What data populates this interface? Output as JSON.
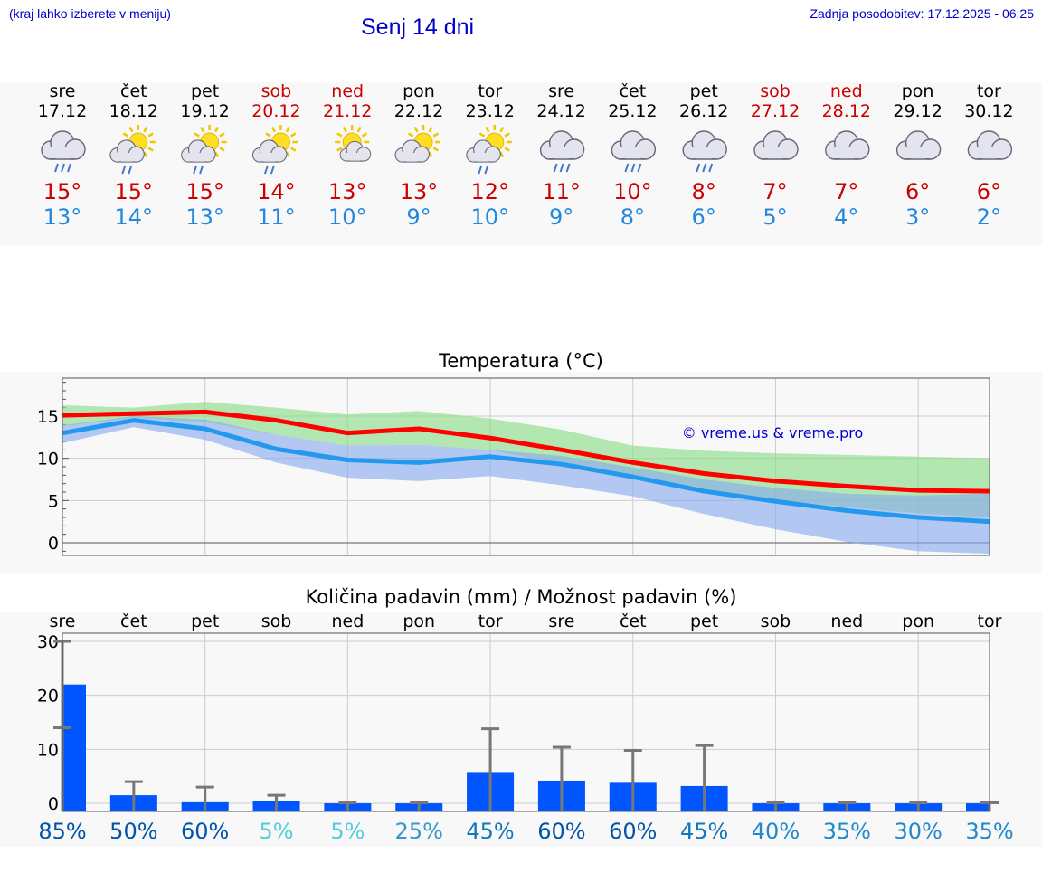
{
  "header": {
    "menu_hint": "(kraj lahko izberete v meniju)",
    "title": "Senj 14 dni",
    "updated": "Zadnja posodobitev: 17.12.2025 - 06:25"
  },
  "colors": {
    "weekday": "#000000",
    "weekend": "#cc0000",
    "tmax": "#cc0000",
    "tmin": "#2288dd",
    "title_blue": "#0000cc"
  },
  "days": [
    {
      "name": "sre",
      "date": "17.12",
      "weekend": false,
      "icon": "cloud-rain-icon",
      "tmax": "15°",
      "tmin": "13°"
    },
    {
      "name": "čet",
      "date": "18.12",
      "weekend": false,
      "icon": "sun-cloud-rain-icon",
      "tmax": "15°",
      "tmin": "14°"
    },
    {
      "name": "pet",
      "date": "19.12",
      "weekend": false,
      "icon": "sun-cloud-rain-icon",
      "tmax": "15°",
      "tmin": "13°"
    },
    {
      "name": "sob",
      "date": "20.12",
      "weekend": true,
      "icon": "sun-cloud-rain-icon",
      "tmax": "14°",
      "tmin": "11°"
    },
    {
      "name": "ned",
      "date": "21.12",
      "weekend": true,
      "icon": "sun-small-cloud-icon",
      "tmax": "13°",
      "tmin": "10°"
    },
    {
      "name": "pon",
      "date": "22.12",
      "weekend": false,
      "icon": "sun-cloud-icon",
      "tmax": "13°",
      "tmin": "9°"
    },
    {
      "name": "tor",
      "date": "23.12",
      "weekend": false,
      "icon": "sun-cloud-rain-icon",
      "tmax": "12°",
      "tmin": "10°"
    },
    {
      "name": "sre",
      "date": "24.12",
      "weekend": false,
      "icon": "cloud-rain-icon",
      "tmax": "11°",
      "tmin": "9°"
    },
    {
      "name": "čet",
      "date": "25.12",
      "weekend": false,
      "icon": "cloud-rain-icon",
      "tmax": "10°",
      "tmin": "8°"
    },
    {
      "name": "pet",
      "date": "26.12",
      "weekend": false,
      "icon": "cloud-rain-icon",
      "tmax": "8°",
      "tmin": "6°"
    },
    {
      "name": "sob",
      "date": "27.12",
      "weekend": true,
      "icon": "cloud-icon",
      "tmax": "7°",
      "tmin": "5°"
    },
    {
      "name": "ned",
      "date": "28.12",
      "weekend": true,
      "icon": "cloud-icon",
      "tmax": "7°",
      "tmin": "4°"
    },
    {
      "name": "pon",
      "date": "29.12",
      "weekend": false,
      "icon": "cloud-icon",
      "tmax": "6°",
      "tmin": "3°"
    },
    {
      "name": "tor",
      "date": "30.12",
      "weekend": false,
      "icon": "cloud-icon",
      "tmax": "6°",
      "tmin": "2°"
    }
  ],
  "chart_data": [
    {
      "type": "line",
      "title": "Temperatura (°C)",
      "watermark": "© vreme.us & vreme.pro",
      "ylim": [
        -1.5,
        19.5
      ],
      "yticks": [
        0,
        5,
        10,
        15
      ],
      "x": [
        0,
        1,
        2,
        3,
        4,
        5,
        6,
        7,
        8,
        9,
        10,
        11,
        12,
        13
      ],
      "series": [
        {
          "name": "max",
          "color": "#ff0000",
          "values": [
            15.1,
            15.3,
            15.5,
            14.5,
            13.0,
            13.5,
            12.4,
            11.0,
            9.5,
            8.2,
            7.3,
            6.7,
            6.2,
            6.1
          ]
        },
        {
          "name": "min",
          "color": "#2299ee",
          "values": [
            13.0,
            14.5,
            13.5,
            11.1,
            9.8,
            9.5,
            10.2,
            9.3,
            7.8,
            6.1,
            4.9,
            3.8,
            3.0,
            2.5
          ]
        }
      ],
      "bands": [
        {
          "name": "max-range",
          "color": "#88dd88",
          "upper": [
            16.3,
            16.0,
            16.7,
            16.0,
            15.2,
            15.6,
            14.7,
            13.4,
            11.5,
            10.9,
            10.6,
            10.4,
            10.2,
            10.0
          ],
          "lower": [
            13.8,
            14.8,
            14.3,
            12.8,
            11.5,
            11.6,
            11.0,
            9.3,
            7.7,
            6.2,
            5.1,
            4.2,
            3.5,
            3.0
          ]
        },
        {
          "name": "min-range",
          "color": "#88aaee",
          "upper": [
            13.9,
            15.0,
            14.6,
            12.8,
            11.5,
            11.6,
            11.0,
            10.3,
            8.9,
            7.5,
            6.5,
            5.8,
            5.6,
            5.8
          ],
          "lower": [
            11.8,
            13.7,
            12.2,
            9.5,
            7.7,
            7.3,
            7.9,
            6.8,
            5.5,
            3.4,
            1.6,
            0.1,
            -1.0,
            -1.3
          ]
        }
      ]
    },
    {
      "type": "bar",
      "title": "Količina padavin (mm) / Možnost padavin (%)",
      "categories": [
        "sre",
        "čet",
        "pet",
        "sob",
        "ned",
        "pon",
        "tor",
        "sre",
        "čet",
        "pet",
        "sob",
        "ned",
        "pon",
        "tor"
      ],
      "ylim": [
        -1.5,
        31.5
      ],
      "yticks": [
        0,
        10,
        20,
        30
      ],
      "values": [
        22.0,
        1.5,
        0.2,
        0.5,
        0.0,
        0.0,
        5.8,
        4.2,
        3.8,
        3.2,
        0.0,
        0.0,
        0.0,
        0.0
      ],
      "error_max": [
        30.0,
        4.0,
        3.0,
        1.5,
        0.1,
        0.1,
        13.8,
        10.4,
        9.8,
        10.7,
        0.1,
        0.1,
        0.1,
        0.1
      ],
      "error_min": [
        14.0,
        0,
        0,
        0,
        0,
        0,
        0,
        0,
        0,
        0,
        0,
        0,
        0,
        0
      ],
      "probability": [
        "85%",
        "50%",
        "60%",
        "5%",
        "5%",
        "25%",
        "45%",
        "60%",
        "60%",
        "45%",
        "40%",
        "35%",
        "30%",
        "35%"
      ],
      "probability_colors": [
        "#0055aa",
        "#0055aa",
        "#0055aa",
        "#55ccdd",
        "#55ccdd",
        "#3399cc",
        "#1177bb",
        "#0055aa",
        "#0055aa",
        "#1177bb",
        "#2288cc",
        "#2288cc",
        "#2288cc",
        "#2288cc"
      ],
      "bar_color": "#0055ff",
      "error_color": "#777777"
    }
  ]
}
